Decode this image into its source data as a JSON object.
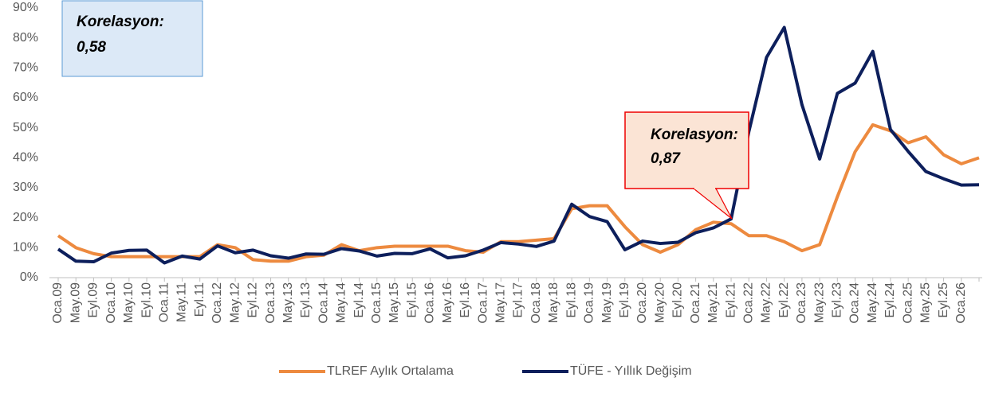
{
  "chart_data": {
    "type": "line",
    "categories": [
      "Oca.09",
      "May.09",
      "Eyl.09",
      "Oca.10",
      "May.10",
      "Eyl.10",
      "Oca.11",
      "May.11",
      "Eyl.11",
      "Oca.12",
      "May.12",
      "Eyl.12",
      "Oca.13",
      "May.13",
      "Eyl.13",
      "Oca.14",
      "May.14",
      "Eyl.14",
      "Oca.15",
      "May.15",
      "Eyl.15",
      "Oca.16",
      "May.16",
      "Eyl.16",
      "Oca.17",
      "May.17",
      "Eyl.17",
      "Oca.18",
      "May.18",
      "Eyl.18",
      "Oca.19",
      "May.19",
      "Eyl.19",
      "Oca.20",
      "May.20",
      "Eyl.20",
      "Oca.21",
      "May.21",
      "Eyl.21",
      "Oca.22",
      "May.22",
      "Eyl.22",
      "Oca.23",
      "May.23",
      "Eyl.23",
      "Oca.24",
      "May.24",
      "Eyl.24",
      "Oca.25",
      "May.25",
      "Eyl.25",
      "Oca.26",
      null
    ],
    "series": [
      {
        "name": "TLREF Aylık Ortalama",
        "color": "#ed8a3f",
        "values": [
          14,
          10,
          8,
          7,
          7,
          7,
          7,
          7,
          7,
          11,
          10,
          6,
          5.5,
          5.5,
          7,
          7.5,
          11,
          9,
          10,
          10.5,
          10.5,
          10.5,
          10.5,
          9,
          8.5,
          12,
          12,
          12.5,
          13,
          23,
          24,
          24,
          17,
          11,
          8.5,
          11,
          16,
          18.5,
          18,
          14,
          14,
          12,
          9,
          11,
          27,
          42,
          51,
          49,
          45,
          47,
          41,
          38,
          40
        ]
      },
      {
        "name": "TÜFE - Yıllık Değişim",
        "color": "#0d1f5c",
        "values": [
          9.5,
          5.5,
          5.3,
          8.2,
          9.1,
          9.2,
          4.9,
          7.2,
          6.2,
          10.6,
          8.3,
          9.2,
          7.3,
          6.5,
          7.9,
          7.8,
          9.7,
          8.9,
          7.2,
          8.1,
          8,
          9.6,
          6.6,
          7.3,
          9.2,
          11.7,
          11.2,
          10.4,
          12.2,
          24.5,
          20.4,
          18.7,
          9.3,
          12.2,
          11.4,
          11.8,
          15,
          16.6,
          19.6,
          48.7,
          73.5,
          83.5,
          57.7,
          39.6,
          61.5,
          64.9,
          75.5,
          49.4,
          42.1,
          35.4,
          33,
          30.9,
          31
        ]
      }
    ],
    "ylim": [
      0,
      90
    ],
    "yticks": [
      {
        "value": 0,
        "label": "0%"
      },
      {
        "value": 10,
        "label": "10%"
      },
      {
        "value": 20,
        "label": "20%"
      },
      {
        "value": 30,
        "label": "30%"
      },
      {
        "value": 40,
        "label": "40%"
      },
      {
        "value": 50,
        "label": "50%"
      },
      {
        "value": 60,
        "label": "60%"
      },
      {
        "value": 70,
        "label": "70%"
      },
      {
        "value": 80,
        "label": "80%"
      },
      {
        "value": 90,
        "label": "90%"
      }
    ],
    "annotations": [
      {
        "lines": [
          "Korelasyon:",
          "0,58"
        ]
      },
      {
        "lines": [
          "Korelasyon:",
          "0,87"
        ]
      }
    ],
    "grid": false,
    "legend": "bottom"
  }
}
